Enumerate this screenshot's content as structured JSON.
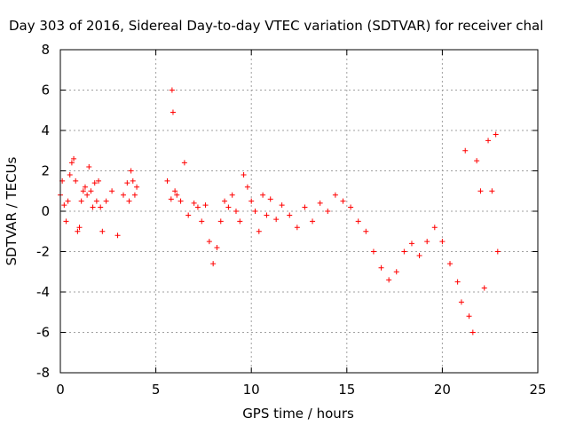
{
  "chart_data": {
    "type": "scatter",
    "title": "Day 303 of 2016, Sidereal Day-to-day VTEC variation (SDTVAR) for receiver chal",
    "xlabel": "GPS time / hours",
    "ylabel": "SDTVAR / TECUs",
    "xlim": [
      0,
      25
    ],
    "ylim": [
      -8,
      8
    ],
    "xticks": [
      0,
      5,
      10,
      15,
      20,
      25
    ],
    "yticks": [
      -8,
      -6,
      -4,
      -2,
      0,
      2,
      4,
      6,
      8
    ],
    "grid": true,
    "marker": "+",
    "color": "#ff0000",
    "series": [
      {
        "name": "SDTVAR",
        "description": "dense per-satellite point clouds, approximated by key points along the observed tracks",
        "x": [
          0.0,
          0.1,
          0.2,
          0.3,
          0.4,
          0.5,
          0.6,
          0.7,
          0.8,
          0.9,
          1.0,
          1.1,
          1.2,
          1.3,
          1.4,
          1.5,
          1.6,
          1.7,
          1.8,
          1.9,
          2.0,
          2.1,
          2.2,
          2.4,
          2.7,
          3.0,
          3.3,
          3.5,
          3.6,
          3.7,
          3.8,
          3.9,
          4.0,
          5.6,
          5.8,
          5.85,
          5.9,
          6.0,
          6.1,
          6.3,
          6.5,
          6.7,
          7.0,
          7.2,
          7.4,
          7.6,
          7.8,
          8.0,
          8.2,
          8.4,
          8.6,
          8.8,
          9.0,
          9.2,
          9.4,
          9.6,
          9.8,
          10.0,
          10.2,
          10.4,
          10.6,
          10.8,
          11.0,
          11.3,
          11.6,
          12.0,
          12.4,
          12.8,
          13.2,
          13.6,
          14.0,
          14.4,
          14.8,
          15.2,
          15.6,
          16.0,
          16.4,
          16.8,
          17.2,
          17.6,
          18.0,
          18.4,
          18.8,
          19.2,
          19.6,
          20.0,
          20.4,
          20.8,
          21.0,
          21.2,
          21.4,
          21.6,
          21.8,
          22.0,
          22.2,
          22.4,
          22.6,
          22.8,
          22.9
        ],
        "y": [
          0.8,
          1.5,
          0.3,
          -0.5,
          0.5,
          1.8,
          2.4,
          2.6,
          1.5,
          -1.0,
          -0.8,
          0.5,
          1.0,
          1.2,
          0.8,
          2.2,
          1.0,
          0.2,
          1.4,
          0.5,
          1.5,
          0.2,
          -1.0,
          0.5,
          1.0,
          -1.2,
          0.8,
          1.4,
          0.5,
          2.0,
          1.5,
          0.8,
          1.2,
          1.5,
          0.6,
          6.0,
          4.9,
          1.0,
          0.8,
          0.5,
          2.4,
          -0.2,
          0.4,
          0.2,
          -0.5,
          0.3,
          -1.5,
          -2.6,
          -1.8,
          -0.5,
          0.5,
          0.2,
          0.8,
          0.0,
          -0.5,
          1.8,
          1.2,
          0.5,
          0.0,
          -1.0,
          0.8,
          -0.2,
          0.6,
          -0.4,
          0.3,
          -0.2,
          -0.8,
          0.2,
          -0.5,
          0.4,
          0.0,
          0.8,
          0.5,
          0.2,
          -0.5,
          -1.0,
          -2.0,
          -2.8,
          -3.4,
          -3.0,
          -2.0,
          -1.6,
          -2.2,
          -1.5,
          -0.8,
          -1.5,
          -2.6,
          -3.5,
          -4.5,
          3.0,
          -5.2,
          -6.0,
          2.5,
          1.0,
          -3.8,
          3.5,
          1.0,
          3.8,
          -2.0
        ]
      }
    ]
  }
}
